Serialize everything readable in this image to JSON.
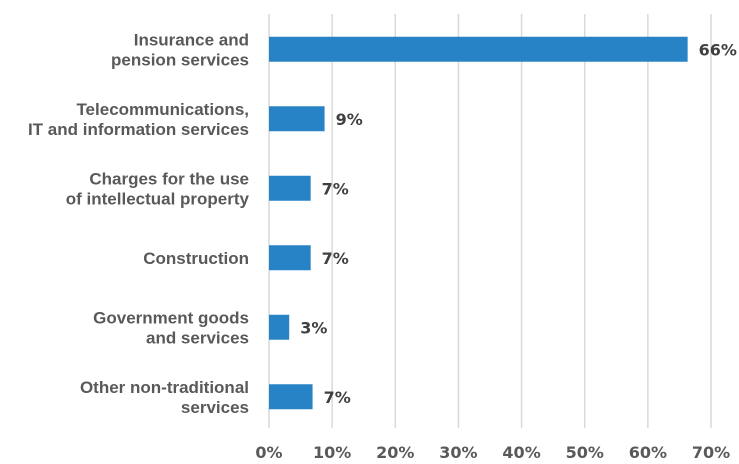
{
  "chart_data": {
    "type": "bar",
    "orientation": "horizontal",
    "categories": [
      [
        "Insurance and",
        "pension services"
      ],
      [
        "Telecommunications,",
        "IT and information services"
      ],
      [
        "Charges for the use",
        "of intellectual property"
      ],
      [
        "Construction"
      ],
      [
        "Government goods",
        "and services"
      ],
      [
        "Other non-traditional",
        "services"
      ]
    ],
    "values": [
      66.3,
      8.8,
      6.6,
      6.6,
      3.2,
      6.9
    ],
    "data_labels": [
      "66%",
      "9%",
      "7%",
      "7%",
      "3%",
      "7%"
    ],
    "xlim": [
      0,
      70
    ],
    "x_ticks": [
      0,
      10,
      20,
      30,
      40,
      50,
      60,
      70
    ],
    "x_tick_labels": [
      "0%",
      "10%",
      "20%",
      "30%",
      "40%",
      "50%",
      "60%",
      "70%"
    ],
    "grid": "vertical",
    "legend": "none",
    "bar_color": "#2783C6",
    "grid_color": "#D9D9D9",
    "label_color": "#595959",
    "data_label_color": "#404040"
  }
}
